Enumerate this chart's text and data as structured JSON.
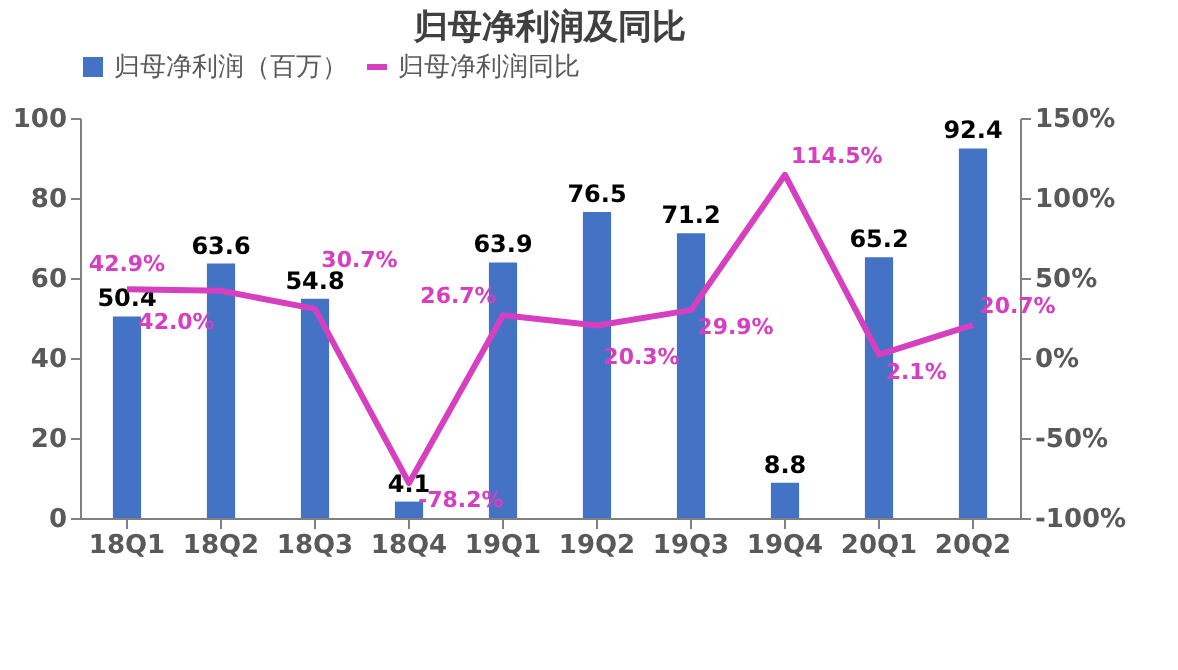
{
  "chart_data": {
    "type": "bar",
    "title": "归母净利润及同比",
    "categories": [
      "18Q1",
      "18Q2",
      "18Q3",
      "18Q4",
      "19Q1",
      "19Q2",
      "19Q3",
      "19Q4",
      "20Q1",
      "20Q2"
    ],
    "series": [
      {
        "name": "归母净利润（百万）",
        "color": "#4472c4",
        "values": [
          50.4,
          63.6,
          54.8,
          4.1,
          63.9,
          76.5,
          71.2,
          8.8,
          65.2,
          92.4
        ],
        "value_labels": [
          "50.4",
          "63.6",
          "54.8",
          "4.1",
          "63.9",
          "76.5",
          "71.2",
          "8.8",
          "65.2",
          "92.4"
        ]
      },
      {
        "name": "归母净利润同比",
        "type": "line",
        "axis": "y2",
        "color": "#d63fbf",
        "values": [
          42.9,
          42.0,
          30.7,
          -78.2,
          26.7,
          20.3,
          29.9,
          114.5,
          2.1,
          20.7
        ],
        "value_labels": [
          "42.9%",
          "42.0%",
          "30.7%",
          "-78.2%",
          "26.7%",
          "20.3%",
          "29.9%",
          "114.5%",
          "2.1%",
          "20.7%"
        ]
      }
    ],
    "ylim": [
      0,
      100
    ],
    "yticks": [
      0,
      20,
      40,
      60,
      80,
      100
    ],
    "y2lim": [
      -100,
      150
    ],
    "y2ticks": [
      {
        "value": -100,
        "label": "-100%"
      },
      {
        "value": -50,
        "label": "-50%"
      },
      {
        "value": 0,
        "label": "0%"
      },
      {
        "value": 50,
        "label": "50%"
      },
      {
        "value": 100,
        "label": "100%"
      },
      {
        "value": 150,
        "label": "150%"
      }
    ],
    "grid": false,
    "legend": "top"
  }
}
